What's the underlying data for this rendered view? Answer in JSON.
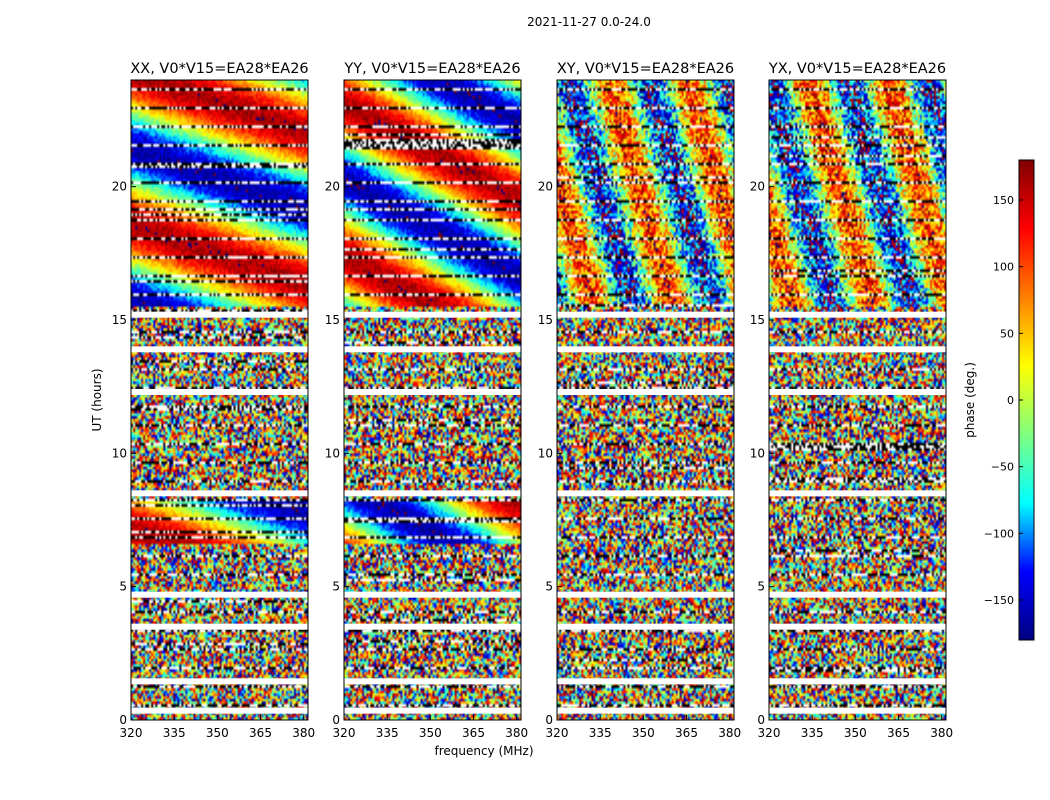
{
  "suptitle": "2021-11-27 0.0-24.0",
  "chart_data": [
    {
      "type": "heatmap",
      "title": "XX, V0*V15=EA28*EA26",
      "xlabel": "",
      "ylabel": "UT (hours)",
      "xlim": [
        320,
        381.5
      ],
      "ylim": [
        0,
        24
      ],
      "xticks": [
        "320",
        "335",
        "350",
        "365",
        "380"
      ],
      "yticks": [
        "0",
        "5",
        "10",
        "15",
        "20"
      ],
      "coherent_ranges_hours": [
        [
          6.6,
          8.2
        ],
        [
          15.5,
          24
        ]
      ]
    },
    {
      "type": "heatmap",
      "title": "YY, V0*V15=EA28*EA26",
      "xlabel": "frequency (MHz)",
      "ylabel": "",
      "xlim": [
        320,
        381.5
      ],
      "ylim": [
        0,
        24
      ],
      "xticks": [
        "320",
        "335",
        "350",
        "365",
        "380"
      ],
      "yticks": [
        "0",
        "5",
        "10",
        "15",
        "20"
      ],
      "coherent_ranges_hours": [
        [
          6.6,
          8.2
        ],
        [
          15.5,
          24
        ]
      ]
    },
    {
      "type": "heatmap",
      "title": "XY, V0*V15=EA28*EA26",
      "xlabel": "",
      "ylabel": "",
      "xlim": [
        320,
        381.5
      ],
      "ylim": [
        0,
        24
      ],
      "xticks": [
        "320",
        "335",
        "350",
        "365",
        "380"
      ],
      "yticks": [
        "0",
        "5",
        "10",
        "15",
        "20"
      ],
      "coherent_ranges_hours": [
        [
          15.5,
          24
        ]
      ]
    },
    {
      "type": "heatmap",
      "title": "YX, V0*V15=EA28*EA26",
      "xlabel": "",
      "ylabel": "",
      "xlim": [
        320,
        381.5
      ],
      "ylim": [
        0,
        24
      ],
      "xticks": [
        "320",
        "335",
        "350",
        "365",
        "380"
      ],
      "yticks": [
        "0",
        "5",
        "10",
        "15",
        "20"
      ],
      "coherent_ranges_hours": [
        [
          15.5,
          24
        ]
      ]
    }
  ],
  "colorbar": {
    "label": "phase (deg.)",
    "range": [
      -180,
      180
    ],
    "ticks": [
      {
        "value": 150,
        "label": "150"
      },
      {
        "value": 100,
        "label": "100"
      },
      {
        "value": 50,
        "label": "50"
      },
      {
        "value": 0,
        "label": "0"
      },
      {
        "value": -50,
        "label": "−50"
      },
      {
        "value": -100,
        "label": "−100"
      },
      {
        "value": -150,
        "label": "−150"
      }
    ],
    "colors": [
      "#000080",
      "#0000ff",
      "#00ffff",
      "#80ff80",
      "#ffff00",
      "#ff8000",
      "#ff0000",
      "#800000"
    ]
  },
  "gaps_hours": [
    1.45,
    12.3,
    15.2,
    13.9,
    8.5,
    3.5,
    0.35,
    4.7
  ]
}
